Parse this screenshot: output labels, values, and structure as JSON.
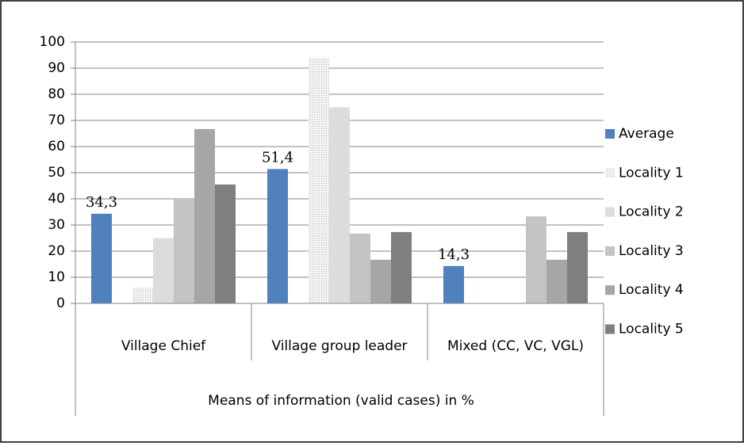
{
  "chart_data": {
    "type": "bar",
    "x_label": "Means of information (valid cases) in %",
    "categories": [
      "Village Chief",
      "Village group leader",
      "Mixed (CC, VC, VGL)"
    ],
    "series": [
      {
        "name": "Average",
        "color": "#4f81bd",
        "values": [
          34.3,
          51.4,
          14.3
        ],
        "value_labels": [
          "34,3",
          "51,4",
          "14,3"
        ]
      },
      {
        "name": "Locality 1",
        "color": "#e6e6e6",
        "pattern": "dots",
        "values": [
          6,
          94,
          0
        ]
      },
      {
        "name": "Locality 2",
        "color": "#dcdcdc",
        "values": [
          25,
          75,
          0
        ]
      },
      {
        "name": "Locality 3",
        "color": "#c4c4c4",
        "values": [
          40,
          26.7,
          33.3
        ]
      },
      {
        "name": "Locality 4",
        "color": "#a6a6a6",
        "values": [
          66.7,
          16.7,
          16.7
        ]
      },
      {
        "name": "Locality 5",
        "color": "#7f7f7f",
        "values": [
          45.5,
          27.3,
          27.3
        ]
      }
    ],
    "ylim": [
      0,
      100
    ],
    "yticks": [
      0,
      10,
      20,
      30,
      40,
      50,
      60,
      70,
      80,
      90,
      100
    ],
    "grid": true,
    "legend": "right"
  }
}
